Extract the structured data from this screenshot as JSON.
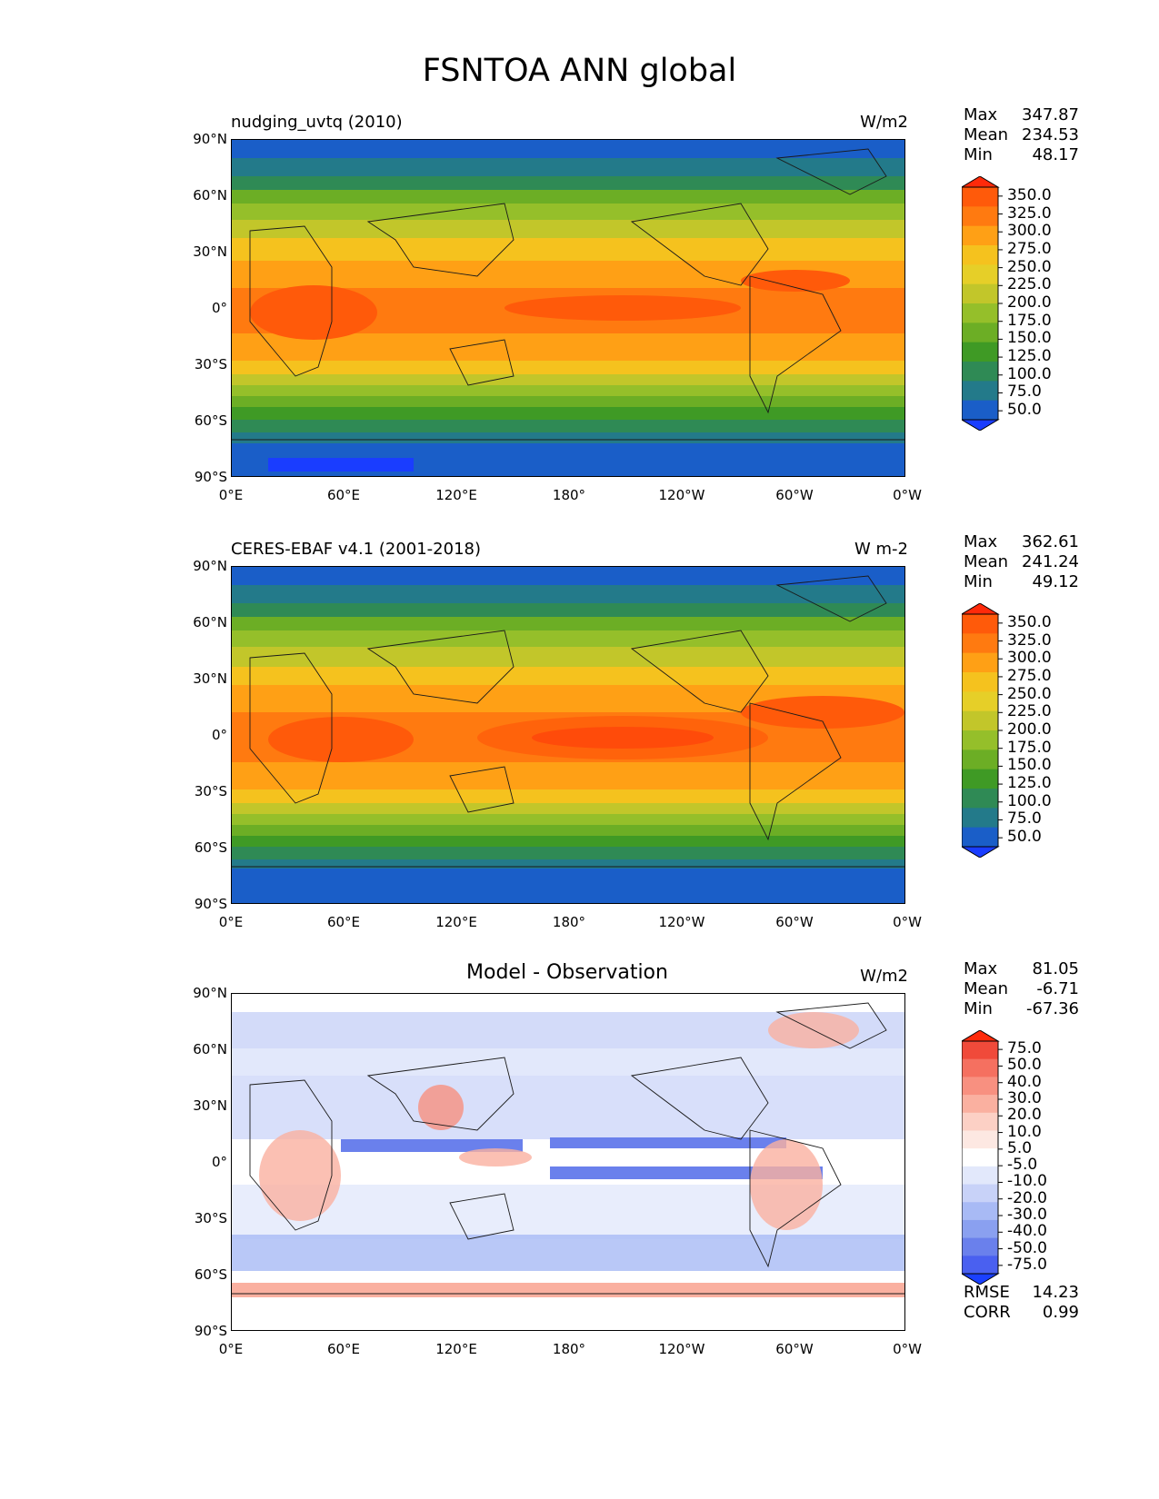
{
  "title": "FSNTOA ANN global",
  "lat_labels": [
    "90°N",
    "60°N",
    "30°N",
    "0°",
    "30°S",
    "60°S",
    "90°S"
  ],
  "lon_labels": [
    "0°E",
    "60°E",
    "120°E",
    "180°",
    "120°W",
    "60°W",
    "0°W"
  ],
  "panels": [
    {
      "name": "nudging_uvtq (2010)",
      "units": "W/m2",
      "stats": {
        "max_label": "Max",
        "max": "347.87",
        "mean_label": "Mean",
        "mean": "234.53",
        "min_label": "Min",
        "min": "48.17"
      },
      "colorbar": {
        "labels": [
          "350.0",
          "325.0",
          "300.0",
          "275.0",
          "250.0",
          "225.0",
          "200.0",
          "175.0",
          "150.0",
          "125.0",
          "100.0",
          "75.0",
          "50.0"
        ],
        "colors": [
          "#ff2a0a",
          "#ff5a0a",
          "#ff7a10",
          "#ffa015",
          "#f5c21e",
          "#e6cf28",
          "#c2c62a",
          "#95bf2a",
          "#6cae25",
          "#3f9a25",
          "#2f8a55",
          "#237a8a",
          "#1a5ec8",
          "#1a3dff"
        ]
      }
    },
    {
      "name": "CERES-EBAF v4.1 (2001-2018)",
      "units": "W m-2",
      "stats": {
        "max_label": "Max",
        "max": "362.61",
        "mean_label": "Mean",
        "mean": "241.24",
        "min_label": "Min",
        "min": "49.12"
      },
      "colorbar": {
        "labels": [
          "350.0",
          "325.0",
          "300.0",
          "275.0",
          "250.0",
          "225.0",
          "200.0",
          "175.0",
          "150.0",
          "125.0",
          "100.0",
          "75.0",
          "50.0"
        ],
        "colors": [
          "#ff2a0a",
          "#ff5a0a",
          "#ff7a10",
          "#ffa015",
          "#f5c21e",
          "#e6cf28",
          "#c2c62a",
          "#95bf2a",
          "#6cae25",
          "#3f9a25",
          "#2f8a55",
          "#237a8a",
          "#1a5ec8",
          "#1a3dff"
        ]
      }
    },
    {
      "name": "Model - Observation",
      "units": "W/m2",
      "stats": {
        "max_label": "Max",
        "max": "81.05",
        "mean_label": "Mean",
        "mean": "-6.71",
        "min_label": "Min",
        "min": "-67.36"
      },
      "colorbar": {
        "labels": [
          "75.0",
          "50.0",
          "40.0",
          "30.0",
          "20.0",
          "10.0",
          "5.0",
          "-5.0",
          "-10.0",
          "-20.0",
          "-30.0",
          "-40.0",
          "-50.0",
          "-75.0"
        ],
        "colors": [
          "#ff2a0a",
          "#f04a3a",
          "#f57060",
          "#f89080",
          "#fab0a0",
          "#fcd0c5",
          "#fde8e2",
          "#ffffff",
          "#e2e8fb",
          "#c8d2f8",
          "#a8baf5",
          "#8aa0f0",
          "#6a80ec",
          "#4a60f0",
          "#1a40ff"
        ]
      },
      "rmse_label": "RMSE",
      "rmse": "14.23",
      "corr_label": "CORR",
      "corr": "0.99"
    }
  ]
}
